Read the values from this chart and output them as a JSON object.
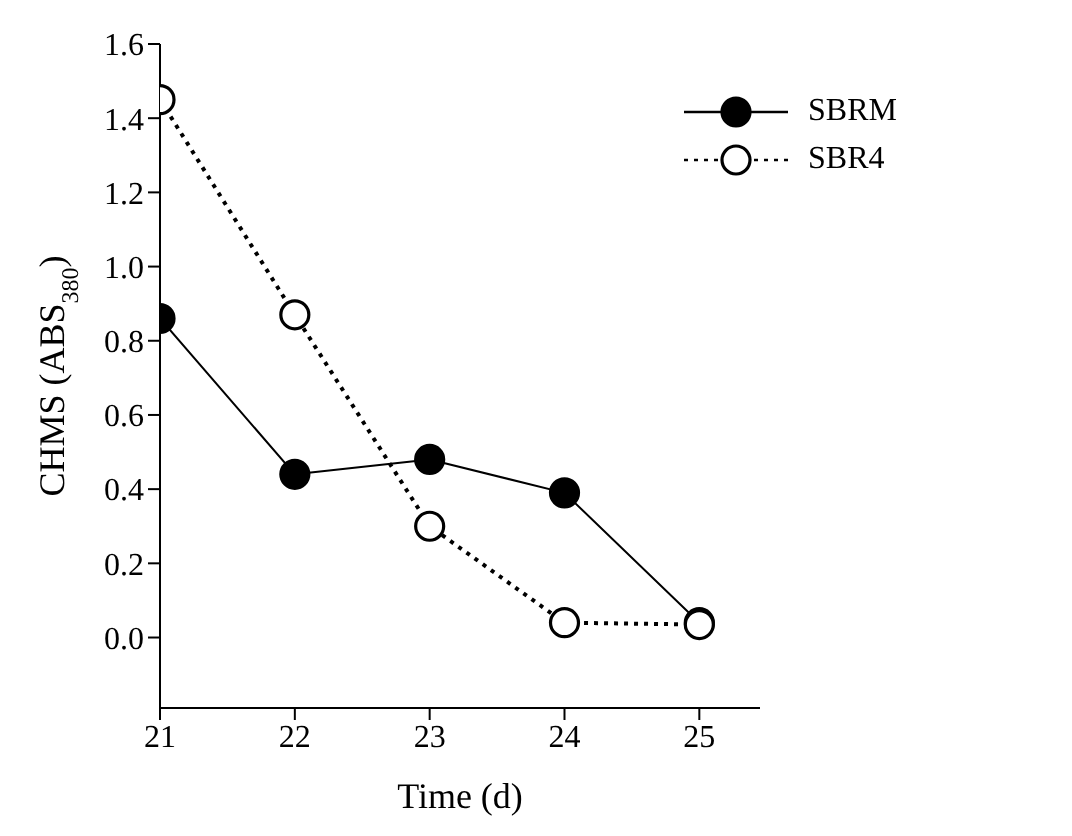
{
  "chart_data": {
    "type": "line",
    "xlabel": "Time (d)",
    "ylabel": "CHMS (ABS$_{380}$)",
    "x": [
      21,
      22,
      23,
      24,
      25
    ],
    "series": [
      {
        "name": "SBRM",
        "color": "#000000",
        "values": [
          0.86,
          0.44,
          0.48,
          0.39,
          0.04
        ],
        "line_style": "solid"
      },
      {
        "name": "SBR4",
        "color": "#000000",
        "values": [
          1.45,
          0.87,
          0.3,
          0.04,
          0.035
        ],
        "line_style": "dotted"
      }
    ],
    "xlim": [
      21,
      25.45
    ],
    "xticks": [
      21,
      22,
      23,
      24,
      25
    ],
    "ylim": [
      -0.19,
      1.6
    ],
    "yticks": [
      {
        "value": 0,
        "label": "0.0"
      },
      0.2,
      0.4,
      0.6,
      0.8,
      {
        "value": 1,
        "label": "1.0"
      },
      1.2,
      1.4,
      1.6
    ],
    "grid": false,
    "legend": "top right",
    "marker": "circle"
  }
}
